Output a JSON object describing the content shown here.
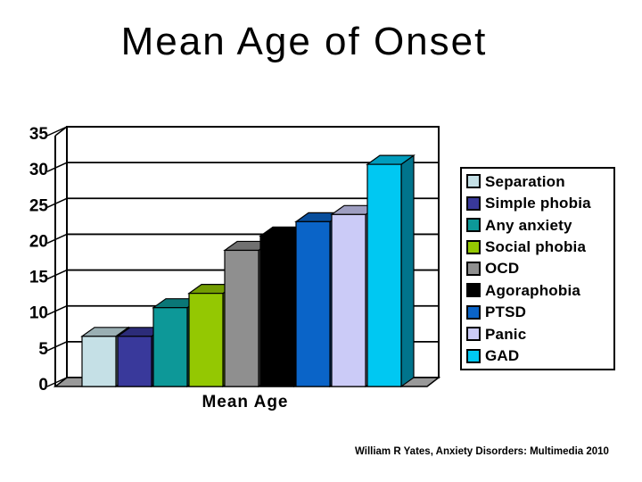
{
  "footer": {
    "citation": "William R Yates, Anxiety Disorders: Multimedia 2010"
  },
  "chart_data": {
    "type": "bar",
    "style": "3d",
    "title": "Mean Age of Onset",
    "xlabel": "Mean Age",
    "ylabel": "",
    "ylim": [
      0,
      35
    ],
    "yticks": [
      0,
      5,
      10,
      15,
      20,
      25,
      30,
      35
    ],
    "grid": true,
    "legend_position": "right",
    "floor_color": "#999999",
    "wall_color": "#ffffff",
    "axis_color": "#000000",
    "series": [
      {
        "name": "Separation",
        "value": 7,
        "color": "#C5E0E6"
      },
      {
        "name": "Simple phobia",
        "value": 7,
        "color": "#39399B"
      },
      {
        "name": "Any anxiety",
        "value": 11,
        "color": "#0D9898"
      },
      {
        "name": "Social phobia",
        "value": 13,
        "color": "#94C802"
      },
      {
        "name": "OCD",
        "value": 19,
        "color": "#8F8F8F"
      },
      {
        "name": "Agoraphobia",
        "value": 21,
        "color": "#000000"
      },
      {
        "name": "PTSD",
        "value": 23,
        "color": "#0A64C8"
      },
      {
        "name": "Panic",
        "value": 24,
        "color": "#CBCBF7"
      },
      {
        "name": "GAD",
        "value": 31,
        "color": "#00C8F2"
      }
    ]
  }
}
